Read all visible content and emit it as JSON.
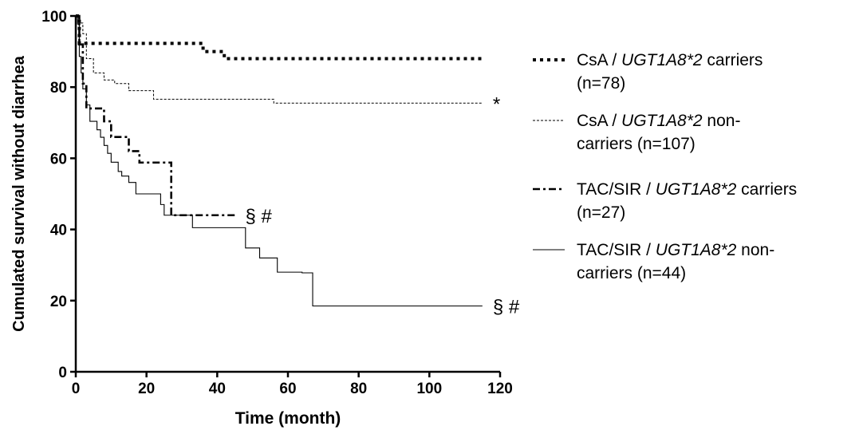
{
  "chart_data": {
    "type": "line",
    "xlabel": "Time (month)",
    "ylabel": "Cumulated survival without diarrhea",
    "xlim": [
      0,
      120
    ],
    "ylim": [
      0,
      100
    ],
    "xticks": [
      0,
      20,
      40,
      60,
      80,
      100,
      120
    ],
    "yticks": [
      0,
      20,
      40,
      60,
      80,
      100
    ],
    "grid": false,
    "legend_position": "right",
    "series": [
      {
        "legend_label": [
          "CsA / ",
          "UGT1A8*2",
          " carriers",
          "(n=78)"
        ],
        "line_style": "dotted-thick",
        "annotation": "",
        "x": [
          0,
          1,
          1,
          36,
          36,
          42,
          42,
          115
        ],
        "y": [
          100,
          100,
          92.3,
          92.3,
          90,
          90,
          88,
          88
        ]
      },
      {
        "legend_label": [
          "CsA / ",
          "UGT1A8*2",
          " non-",
          "carriers  (n=107)"
        ],
        "line_style": "dashed-thin",
        "annotation": "*",
        "x": [
          0,
          1,
          1,
          2,
          2,
          3,
          3,
          5,
          5,
          8,
          8,
          11,
          11,
          15,
          15,
          22,
          22,
          56,
          56,
          115
        ],
        "y": [
          100,
          100,
          98,
          98,
          95,
          95,
          88,
          88,
          84,
          84,
          82,
          82,
          81,
          81,
          79,
          79,
          76.6,
          76.6,
          75.5,
          75.5
        ]
      },
      {
        "legend_label": [
          "TAC/SIR / ",
          "UGT1A8*2",
          " carriers",
          "(n=27)"
        ],
        "line_style": "dash-dot",
        "annotation": "§ #",
        "x": [
          0,
          1,
          1,
          2,
          2,
          3,
          3,
          8,
          8,
          10,
          10,
          15,
          15,
          18,
          18,
          27,
          27,
          45
        ],
        "y": [
          100,
          100,
          92,
          92,
          81,
          81,
          74,
          74,
          70.4,
          70.4,
          66,
          66,
          62,
          62,
          58.8,
          58.8,
          44,
          44
        ]
      },
      {
        "legend_label": [
          "TAC/SIR / ",
          "UGT1A8*2",
          " non-",
          "carriers (n=44)"
        ],
        "line_style": "solid-thin",
        "annotation": "§ #",
        "x": [
          0,
          0.5,
          0.5,
          1,
          1,
          1.5,
          1.5,
          2,
          2,
          3,
          3,
          4,
          4,
          6,
          6,
          7,
          7,
          8,
          8,
          9,
          9,
          10,
          10,
          12,
          12,
          13,
          13,
          15,
          15,
          17,
          17,
          24,
          24,
          25,
          25,
          33,
          33,
          48,
          48,
          52,
          52,
          57,
          57,
          64,
          64,
          67,
          67,
          115
        ],
        "y": [
          100,
          100,
          97.7,
          97.7,
          88.6,
          88.6,
          84,
          84,
          79.5,
          79.5,
          75,
          75,
          70.4,
          70.4,
          68,
          68,
          65.9,
          65.9,
          63.6,
          63.6,
          61.4,
          61.4,
          58.9,
          58.9,
          56.3,
          56.3,
          55,
          55,
          53.2,
          53.2,
          50,
          50,
          47,
          47,
          44,
          44,
          40.5,
          40.5,
          34.8,
          34.8,
          32,
          32,
          28,
          28,
          27.8,
          27.8,
          18.5,
          18.5
        ]
      }
    ]
  }
}
